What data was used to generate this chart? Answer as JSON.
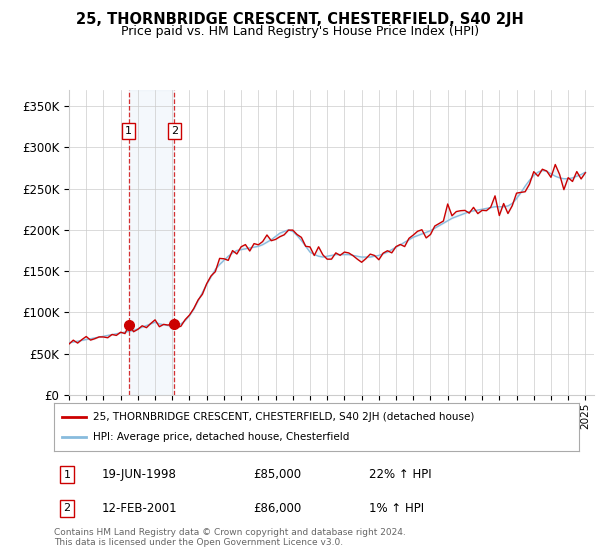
{
  "title": "25, THORNBRIDGE CRESCENT, CHESTERFIELD, S40 2JH",
  "subtitle": "Price paid vs. HM Land Registry's House Price Index (HPI)",
  "ytick_values": [
    0,
    50000,
    100000,
    150000,
    200000,
    250000,
    300000,
    350000
  ],
  "ylim": [
    0,
    370000
  ],
  "xlim_start": 1995.0,
  "xlim_end": 2025.5,
  "legend_line1": "25, THORNBRIDGE CRESCENT, CHESTERFIELD, S40 2JH (detached house)",
  "legend_line2": "HPI: Average price, detached house, Chesterfield",
  "sale1_date": "19-JUN-1998",
  "sale1_price": "£85,000",
  "sale1_hpi": "22% ↑ HPI",
  "sale2_date": "12-FEB-2001",
  "sale2_price": "£86,000",
  "sale2_hpi": "1% ↑ HPI",
  "footer": "Contains HM Land Registry data © Crown copyright and database right 2024.\nThis data is licensed under the Open Government Licence v3.0.",
  "sale1_x": 1998.46,
  "sale1_y": 85000,
  "sale2_x": 2001.12,
  "sale2_y": 86000,
  "red_color": "#cc0000",
  "blue_color": "#88bbdd",
  "shade_color": "#cce0f0",
  "background_color": "#ffffff"
}
